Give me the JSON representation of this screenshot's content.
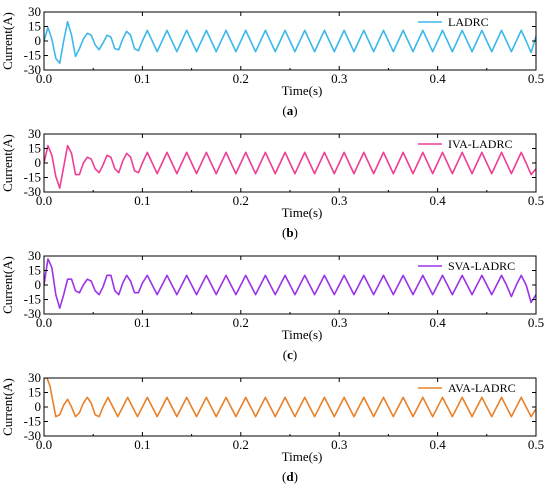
{
  "chart_data": [
    {
      "type": "line",
      "panel_label": "(a)",
      "label_letter": "a",
      "xlabel": "Time(s)",
      "ylabel": "Current(A)",
      "xlim": [
        0,
        0.5
      ],
      "ylim": [
        -30,
        30
      ],
      "x_ticks": [
        "0.0",
        "0.1",
        "0.2",
        "0.3",
        "0.4",
        "0.5"
      ],
      "y_ticks": [
        "30",
        "15",
        "0",
        "-15",
        "-30"
      ],
      "legend_position": "top-right",
      "series": [
        {
          "name": "LADRC",
          "color": "#3db8ea",
          "x": [
            0,
            0.004,
            0.008,
            0.012,
            0.016,
            0.02,
            0.024,
            0.028,
            0.032,
            0.036,
            0.04,
            0.044,
            0.048,
            0.052,
            0.056,
            0.06,
            0.064,
            0.068,
            0.072,
            0.076,
            0.08,
            0.084,
            0.088,
            0.092,
            0.096,
            0.1,
            0.105,
            0.11,
            0.115,
            0.12,
            0.125,
            0.13,
            0.135,
            0.14,
            0.145,
            0.15,
            0.155,
            0.16,
            0.165,
            0.17,
            0.175,
            0.18,
            0.185,
            0.19,
            0.195,
            0.2,
            0.205,
            0.21,
            0.215,
            0.22,
            0.225,
            0.23,
            0.235,
            0.24,
            0.245,
            0.25,
            0.255,
            0.26,
            0.265,
            0.27,
            0.275,
            0.28,
            0.285,
            0.29,
            0.295,
            0.3,
            0.305,
            0.31,
            0.315,
            0.32,
            0.325,
            0.33,
            0.335,
            0.34,
            0.345,
            0.35,
            0.355,
            0.36,
            0.365,
            0.37,
            0.375,
            0.38,
            0.385,
            0.39,
            0.395,
            0.4,
            0.405,
            0.41,
            0.415,
            0.42,
            0.425,
            0.43,
            0.435,
            0.44,
            0.445,
            0.45,
            0.455,
            0.46,
            0.465,
            0.47,
            0.475,
            0.48,
            0.485,
            0.49,
            0.495,
            0.5
          ],
          "values": [
            0,
            14,
            2,
            -18,
            -23,
            0,
            20,
            6,
            -16,
            -8,
            2,
            8,
            6,
            -4,
            -9,
            -2,
            6,
            4,
            -8,
            -9,
            2,
            10,
            6,
            -8,
            -10,
            0,
            11,
            0,
            -11,
            0,
            11,
            0,
            -11,
            0,
            11,
            0,
            -11,
            0,
            11,
            0,
            -11,
            0,
            11,
            0,
            -11,
            0,
            11,
            0,
            -11,
            0,
            11,
            0,
            -11,
            0,
            11,
            0,
            -11,
            0,
            11,
            0,
            -11,
            0,
            11,
            0,
            -11,
            0,
            11,
            0,
            -11,
            0,
            11,
            0,
            -11,
            0,
            11,
            0,
            -11,
            0,
            11,
            0,
            -11,
            0,
            11,
            0,
            -11,
            0,
            11,
            0,
            -11,
            0,
            11,
            0,
            -11,
            0,
            11,
            0,
            -11,
            0,
            11,
            0,
            -11,
            0,
            11,
            0,
            -12,
            5
          ]
        }
      ]
    },
    {
      "type": "line",
      "panel_label": "(b)",
      "label_letter": "b",
      "xlabel": "Time(s)",
      "ylabel": "Current(A)",
      "xlim": [
        0,
        0.5
      ],
      "ylim": [
        -30,
        30
      ],
      "x_ticks": [
        "0.0",
        "0.1",
        "0.2",
        "0.3",
        "0.4",
        "0.5"
      ],
      "y_ticks": [
        "30",
        "15",
        "0",
        "-15",
        "-30"
      ],
      "legend_position": "top-right",
      "series": [
        {
          "name": "IVA-LADRC",
          "color": "#ee3f95",
          "x": [
            0,
            0.004,
            0.008,
            0.012,
            0.016,
            0.02,
            0.024,
            0.028,
            0.032,
            0.036,
            0.04,
            0.044,
            0.048,
            0.052,
            0.056,
            0.06,
            0.064,
            0.068,
            0.072,
            0.076,
            0.08,
            0.084,
            0.088,
            0.092,
            0.096,
            0.1,
            0.105,
            0.11,
            0.115,
            0.12,
            0.125,
            0.13,
            0.135,
            0.14,
            0.145,
            0.15,
            0.155,
            0.16,
            0.165,
            0.17,
            0.175,
            0.18,
            0.185,
            0.19,
            0.195,
            0.2,
            0.205,
            0.21,
            0.215,
            0.22,
            0.225,
            0.23,
            0.235,
            0.24,
            0.245,
            0.25,
            0.255,
            0.26,
            0.265,
            0.27,
            0.275,
            0.28,
            0.285,
            0.29,
            0.295,
            0.3,
            0.305,
            0.31,
            0.315,
            0.32,
            0.325,
            0.33,
            0.335,
            0.34,
            0.345,
            0.35,
            0.355,
            0.36,
            0.365,
            0.37,
            0.375,
            0.38,
            0.385,
            0.39,
            0.395,
            0.4,
            0.405,
            0.41,
            0.415,
            0.42,
            0.425,
            0.43,
            0.435,
            0.44,
            0.445,
            0.45,
            0.455,
            0.46,
            0.465,
            0.47,
            0.475,
            0.48,
            0.485,
            0.49,
            0.495,
            0.5
          ],
          "values": [
            0,
            18,
            8,
            -14,
            -26,
            -4,
            18,
            10,
            -12,
            -12,
            0,
            6,
            4,
            -6,
            -10,
            -2,
            8,
            6,
            -6,
            -10,
            2,
            10,
            6,
            -8,
            -10,
            0,
            11,
            0,
            -11,
            0,
            11,
            0,
            -11,
            0,
            11,
            0,
            -11,
            0,
            11,
            0,
            -11,
            0,
            11,
            0,
            -11,
            0,
            11,
            0,
            -11,
            0,
            11,
            0,
            -11,
            0,
            11,
            0,
            -11,
            0,
            11,
            0,
            -11,
            0,
            11,
            0,
            -11,
            0,
            11,
            0,
            -11,
            0,
            11,
            0,
            -11,
            0,
            11,
            0,
            -11,
            0,
            11,
            0,
            -11,
            0,
            11,
            0,
            -11,
            0,
            11,
            0,
            -11,
            0,
            11,
            0,
            -11,
            0,
            11,
            0,
            -11,
            0,
            11,
            0,
            -11,
            0,
            11,
            0,
            -12,
            -6
          ]
        }
      ]
    },
    {
      "type": "line",
      "panel_label": "(c)",
      "label_letter": "c",
      "xlabel": "Time(s)",
      "ylabel": "Current(A)",
      "xlim": [
        0,
        0.5
      ],
      "ylim": [
        -30,
        30
      ],
      "x_ticks": [
        "0.0",
        "0.1",
        "0.2",
        "0.3",
        "0.4",
        "0.5"
      ],
      "y_ticks": [
        "30",
        "15",
        "0",
        "-15",
        "-30"
      ],
      "legend_position": "top-right",
      "series": [
        {
          "name": "SVA-LADRC",
          "color": "#9b33e6",
          "x": [
            0,
            0.004,
            0.008,
            0.012,
            0.016,
            0.02,
            0.024,
            0.028,
            0.032,
            0.036,
            0.04,
            0.044,
            0.048,
            0.052,
            0.056,
            0.06,
            0.064,
            0.068,
            0.072,
            0.076,
            0.08,
            0.084,
            0.088,
            0.092,
            0.096,
            0.1,
            0.105,
            0.11,
            0.115,
            0.12,
            0.125,
            0.13,
            0.135,
            0.14,
            0.145,
            0.15,
            0.155,
            0.16,
            0.165,
            0.17,
            0.175,
            0.18,
            0.185,
            0.19,
            0.195,
            0.2,
            0.205,
            0.21,
            0.215,
            0.22,
            0.225,
            0.23,
            0.235,
            0.24,
            0.245,
            0.25,
            0.255,
            0.26,
            0.265,
            0.27,
            0.275,
            0.28,
            0.285,
            0.29,
            0.295,
            0.3,
            0.305,
            0.31,
            0.315,
            0.32,
            0.325,
            0.33,
            0.335,
            0.34,
            0.345,
            0.35,
            0.355,
            0.36,
            0.365,
            0.37,
            0.375,
            0.38,
            0.385,
            0.39,
            0.395,
            0.4,
            0.405,
            0.41,
            0.415,
            0.42,
            0.425,
            0.43,
            0.435,
            0.44,
            0.445,
            0.45,
            0.455,
            0.46,
            0.465,
            0.47,
            0.475,
            0.48,
            0.485,
            0.49,
            0.495,
            0.5
          ],
          "values": [
            0,
            27,
            18,
            -10,
            -24,
            -10,
            6,
            6,
            -6,
            -8,
            0,
            6,
            4,
            -6,
            -10,
            -2,
            10,
            10,
            -6,
            -10,
            2,
            10,
            4,
            -8,
            -8,
            2,
            10,
            0,
            -10,
            0,
            10,
            0,
            -10,
            0,
            10,
            0,
            -10,
            0,
            10,
            0,
            -10,
            0,
            10,
            0,
            -10,
            0,
            10,
            0,
            -10,
            0,
            10,
            0,
            -10,
            0,
            10,
            0,
            -10,
            0,
            10,
            0,
            -10,
            0,
            10,
            0,
            -10,
            0,
            10,
            0,
            -10,
            0,
            10,
            0,
            -10,
            0,
            10,
            0,
            -10,
            0,
            10,
            0,
            -10,
            0,
            10,
            0,
            -10,
            0,
            10,
            0,
            -10,
            0,
            10,
            0,
            -10,
            0,
            10,
            0,
            -10,
            0,
            10,
            0,
            -12,
            0,
            10,
            0,
            -18,
            -10
          ]
        }
      ]
    },
    {
      "type": "line",
      "panel_label": "(d)",
      "label_letter": "d",
      "xlabel": "Time(s)",
      "ylabel": "Current(A)",
      "xlim": [
        0,
        0.5
      ],
      "ylim": [
        -30,
        30
      ],
      "x_ticks": [
        "0.0",
        "0.1",
        "0.2",
        "0.3",
        "0.4",
        "0.5"
      ],
      "y_ticks": [
        "30",
        "15",
        "0",
        "-15",
        "-30"
      ],
      "legend_position": "top-right",
      "series": [
        {
          "name": "AVA-LADRC",
          "color": "#e8812a",
          "x": [
            0,
            0.003,
            0.006,
            0.009,
            0.012,
            0.016,
            0.02,
            0.024,
            0.028,
            0.032,
            0.036,
            0.04,
            0.044,
            0.048,
            0.052,
            0.056,
            0.06,
            0.065,
            0.07,
            0.075,
            0.08,
            0.085,
            0.09,
            0.095,
            0.1,
            0.105,
            0.11,
            0.115,
            0.12,
            0.125,
            0.13,
            0.135,
            0.14,
            0.145,
            0.15,
            0.155,
            0.16,
            0.165,
            0.17,
            0.175,
            0.18,
            0.185,
            0.19,
            0.195,
            0.2,
            0.205,
            0.21,
            0.215,
            0.22,
            0.225,
            0.23,
            0.235,
            0.24,
            0.245,
            0.25,
            0.255,
            0.26,
            0.265,
            0.27,
            0.275,
            0.28,
            0.285,
            0.29,
            0.295,
            0.3,
            0.305,
            0.31,
            0.315,
            0.32,
            0.325,
            0.33,
            0.335,
            0.34,
            0.345,
            0.35,
            0.355,
            0.36,
            0.365,
            0.37,
            0.375,
            0.38,
            0.385,
            0.39,
            0.395,
            0.4,
            0.405,
            0.41,
            0.415,
            0.42,
            0.425,
            0.43,
            0.435,
            0.44,
            0.445,
            0.45,
            0.455,
            0.46,
            0.465,
            0.47,
            0.475,
            0.48,
            0.485,
            0.49,
            0.495,
            0.5
          ],
          "values": [
            30,
            30,
            22,
            6,
            -10,
            -8,
            2,
            8,
            0,
            -10,
            -6,
            4,
            10,
            4,
            -8,
            -10,
            0,
            10,
            0,
            -10,
            0,
            10,
            0,
            -10,
            0,
            10,
            0,
            -10,
            0,
            10,
            0,
            -10,
            0,
            10,
            0,
            -10,
            0,
            10,
            0,
            -10,
            0,
            10,
            0,
            -10,
            0,
            10,
            0,
            -10,
            0,
            10,
            0,
            -10,
            0,
            10,
            0,
            -10,
            0,
            10,
            0,
            -10,
            0,
            10,
            0,
            -10,
            0,
            10,
            0,
            -10,
            0,
            10,
            0,
            -10,
            0,
            10,
            0,
            -10,
            0,
            10,
            0,
            -10,
            0,
            10,
            0,
            -10,
            0,
            10,
            0,
            -10,
            0,
            10,
            0,
            -10,
            0,
            10,
            0,
            -10,
            0,
            10,
            0,
            -10,
            0,
            10,
            0,
            -10,
            -2
          ]
        }
      ]
    }
  ]
}
